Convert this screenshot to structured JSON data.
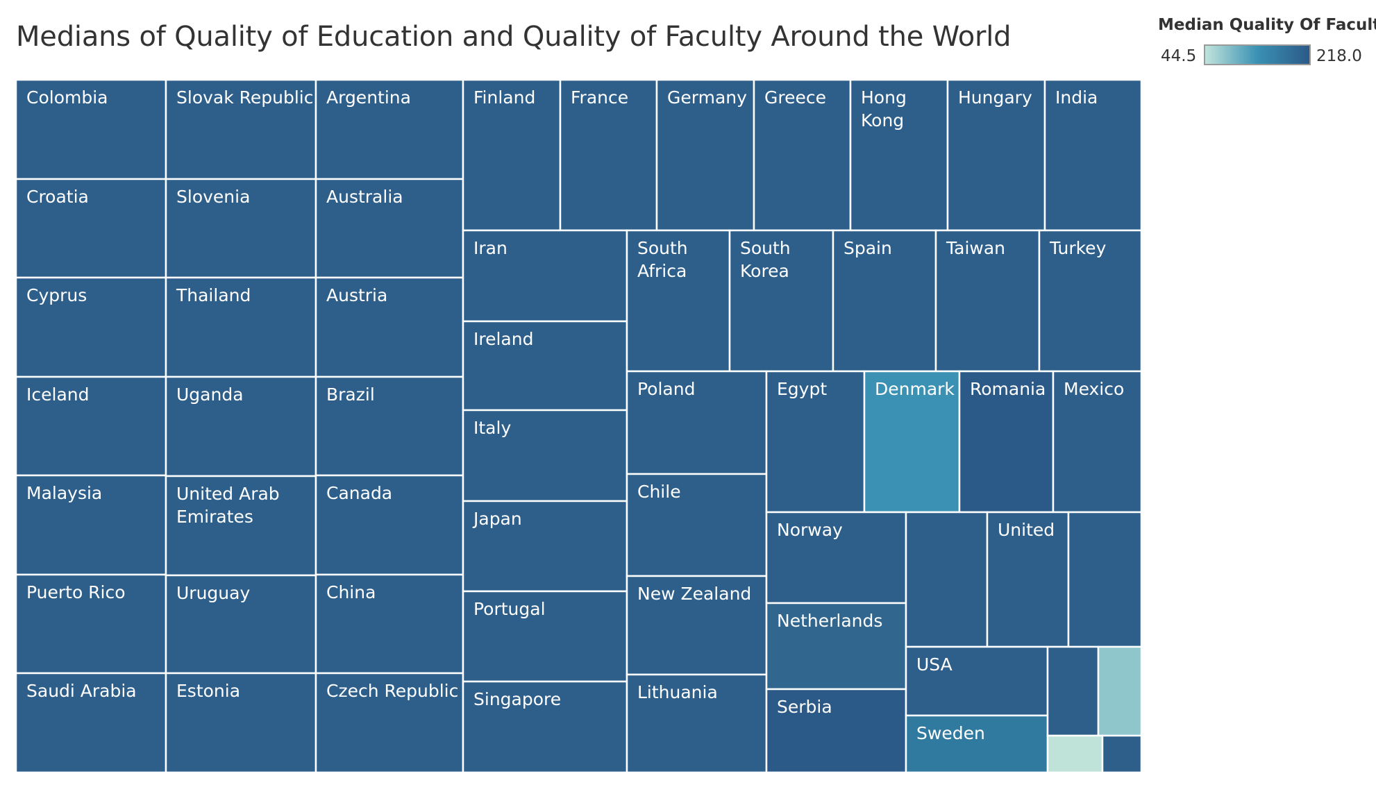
{
  "chart_data": {
    "type": "treemap",
    "title": "Medians of Quality of Education and Quality of Faculty Around the World",
    "legend": {
      "title": "Median Quality Of Faculty",
      "min_label": "44.5",
      "max_label": "218.0",
      "min": 44.5,
      "max": 218.0,
      "color_low": "#c1e4dc",
      "color_mid": "#3a91b3",
      "color_high": "#2c5a88",
      "placement": "top-right"
    },
    "base_color": "#2e5f8a",
    "cells": [
      {
        "lines": [
          "Colombia"
        ],
        "color": "#2e5f8a"
      },
      {
        "lines": [
          "Croatia"
        ],
        "color": "#2e5f8a"
      },
      {
        "lines": [
          "Cyprus"
        ],
        "color": "#2e5f8a"
      },
      {
        "lines": [
          "Iceland"
        ],
        "color": "#2e5f8a"
      },
      {
        "lines": [
          "Malaysia"
        ],
        "color": "#2e5f8a"
      },
      {
        "lines": [
          "Puerto Rico"
        ],
        "color": "#2e5f8a"
      },
      {
        "lines": [
          "Saudi Arabia"
        ],
        "color": "#2e5f8a"
      },
      {
        "lines": [
          "Slovak Republic"
        ],
        "color": "#2e5f8a"
      },
      {
        "lines": [
          "Slovenia"
        ],
        "color": "#2e5f8a"
      },
      {
        "lines": [
          "Thailand"
        ],
        "color": "#2e5f8a"
      },
      {
        "lines": [
          "Uganda"
        ],
        "color": "#2e5f8a"
      },
      {
        "lines": [
          "United Arab",
          "Emirates"
        ],
        "color": "#2e5f8a"
      },
      {
        "lines": [
          "Uruguay"
        ],
        "color": "#2e5f8a"
      },
      {
        "lines": [
          "Estonia"
        ],
        "color": "#2e5f8a"
      },
      {
        "lines": [
          "Argentina"
        ],
        "color": "#2e5f8a"
      },
      {
        "lines": [
          "Australia"
        ],
        "color": "#2e5f8a"
      },
      {
        "lines": [
          "Austria"
        ],
        "color": "#2e5f8a"
      },
      {
        "lines": [
          "Brazil"
        ],
        "color": "#2e5f8a"
      },
      {
        "lines": [
          "Canada"
        ],
        "color": "#2e5f8a"
      },
      {
        "lines": [
          "China"
        ],
        "color": "#2e5f8a"
      },
      {
        "lines": [
          "Czech Republic"
        ],
        "color": "#2e5f8a"
      },
      {
        "lines": [
          "Finland"
        ],
        "color": "#2e5f8a"
      },
      {
        "lines": [
          "France"
        ],
        "color": "#2e5f8a"
      },
      {
        "lines": [
          "Germany"
        ],
        "color": "#2e5f8a"
      },
      {
        "lines": [
          "Greece"
        ],
        "color": "#2e5f8a"
      },
      {
        "lines": [
          "Hong",
          "Kong"
        ],
        "color": "#2e5f8a"
      },
      {
        "lines": [
          "Hungary"
        ],
        "color": "#2e5f8a"
      },
      {
        "lines": [
          "India"
        ],
        "color": "#2e5f8a"
      },
      {
        "lines": [
          "Iran"
        ],
        "color": "#2e5f8a"
      },
      {
        "lines": [
          "Ireland"
        ],
        "color": "#2e5f8a"
      },
      {
        "lines": [
          "Italy"
        ],
        "color": "#2e5f8a"
      },
      {
        "lines": [
          "Japan"
        ],
        "color": "#2e5f8a"
      },
      {
        "lines": [
          "Portugal"
        ],
        "color": "#2e5f8a"
      },
      {
        "lines": [
          "Singapore"
        ],
        "color": "#2e5f8a"
      },
      {
        "lines": [
          "South",
          "Africa"
        ],
        "color": "#2e5f8a"
      },
      {
        "lines": [
          "South",
          "Korea"
        ],
        "color": "#2e5f8a"
      },
      {
        "lines": [
          "Spain"
        ],
        "color": "#2e5f8a"
      },
      {
        "lines": [
          "Taiwan"
        ],
        "color": "#2e5f8a"
      },
      {
        "lines": [
          "Turkey"
        ],
        "color": "#2e5f8a"
      },
      {
        "lines": [
          "Poland"
        ],
        "color": "#2e5f8a"
      },
      {
        "lines": [
          "Chile"
        ],
        "color": "#2e5f8a"
      },
      {
        "lines": [
          "New Zealand"
        ],
        "color": "#2e5f8a"
      },
      {
        "lines": [
          "Lithuania"
        ],
        "color": "#2e5f8a"
      },
      {
        "lines": [
          "Egypt"
        ],
        "color": "#2e5f8a"
      },
      {
        "lines": [
          "Denmark"
        ],
        "color": "#3a91b3"
      },
      {
        "lines": [
          "Romania"
        ],
        "color": "#2c5a88"
      },
      {
        "lines": [
          "Mexico"
        ],
        "color": "#2e5f8a"
      },
      {
        "lines": [
          "Norway"
        ],
        "color": "#2e5f8a"
      },
      {
        "lines": [
          "Netherlands"
        ],
        "color": "#31668f"
      },
      {
        "lines": [
          "Serbia"
        ],
        "color": "#2c5a88"
      },
      {
        "lines": [],
        "color": "#2e5f8a"
      },
      {
        "lines": [
          "United"
        ],
        "color": "#2e5f8a"
      },
      {
        "lines": [],
        "color": "#2e5f8a"
      },
      {
        "lines": [
          "USA"
        ],
        "color": "#2e5f8a"
      },
      {
        "lines": [
          "Sweden"
        ],
        "color": "#317a9f"
      },
      {
        "lines": [],
        "color": "#2e5f8a"
      },
      {
        "lines": [],
        "color": "#8ec6cc"
      },
      {
        "lines": [],
        "color": "#bfe3d9"
      },
      {
        "lines": [],
        "color": "#2e5f8a"
      }
    ]
  }
}
